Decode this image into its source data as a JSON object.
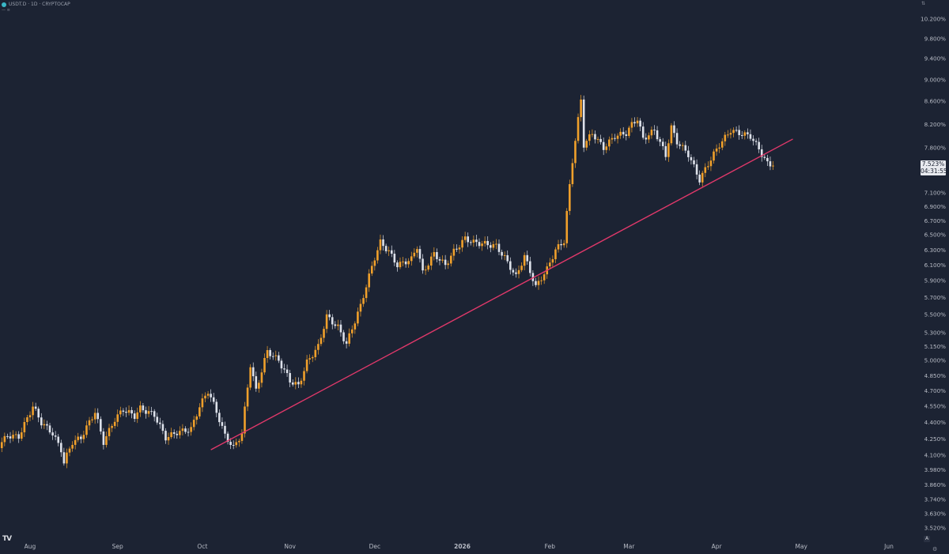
{
  "header": {
    "symbol": "USDT.D · 1D · CRYPTOCAP",
    "indicator": "— ≡",
    "settings_icon": "chart-settings-icon"
  },
  "price_axis": {
    "ticks": [
      "10.200%",
      "9.800%",
      "9.400%",
      "9.000%",
      "8.600%",
      "8.200%",
      "7.800%",
      "7.100%",
      "6.900%",
      "6.700%",
      "6.500%",
      "6.300%",
      "6.100%",
      "5.900%",
      "5.700%",
      "5.500%",
      "5.300%",
      "5.150%",
      "5.000%",
      "4.850%",
      "4.700%",
      "4.550%",
      "4.400%",
      "4.250%",
      "4.100%",
      "3.980%",
      "3.860%",
      "3.740%",
      "3.630%",
      "3.520%"
    ],
    "current_price": "7.523%",
    "countdown": "04:31:55"
  },
  "time_axis": {
    "labels": [
      "Aug",
      "Sep",
      "Oct",
      "Nov",
      "Dec",
      "2026",
      "Feb",
      "Mar",
      "Apr",
      "May",
      "Jun"
    ]
  },
  "colors": {
    "background": "#1c2333",
    "up_candle": "#f0a02b",
    "down_candle": "#dde1ea",
    "trendline": "#e0386a",
    "axis_text": "#b6bac4"
  },
  "chart_data": {
    "type": "candlestick",
    "symbol": "USDT.D",
    "interval": "1D",
    "y_unit": "%",
    "ylim": [
      3.45,
      10.3
    ],
    "x_range": [
      "2025-07-20",
      "2026-06-25"
    ],
    "trendline": {
      "from": {
        "date": "2025-10-04",
        "value": 4.15
      },
      "to": {
        "date": "2026-04-28",
        "value": 7.95
      }
    },
    "anchors": [
      [
        "2025-07-20",
        4.16
      ],
      [
        "2025-07-24",
        4.28
      ],
      [
        "2025-07-28",
        4.27
      ],
      [
        "2025-08-02",
        4.55
      ],
      [
        "2025-08-05",
        4.4
      ],
      [
        "2025-08-09",
        4.3
      ],
      [
        "2025-08-12",
        4.15
      ],
      [
        "2025-08-13",
        4.04
      ],
      [
        "2025-08-16",
        4.22
      ],
      [
        "2025-08-19",
        4.26
      ],
      [
        "2025-08-24",
        4.5
      ],
      [
        "2025-08-27",
        4.22
      ],
      [
        "2025-08-31",
        4.43
      ],
      [
        "2025-09-03",
        4.52
      ],
      [
        "2025-09-07",
        4.46
      ],
      [
        "2025-09-09",
        4.53
      ],
      [
        "2025-09-14",
        4.47
      ],
      [
        "2025-09-18",
        4.26
      ],
      [
        "2025-09-22",
        4.31
      ],
      [
        "2025-09-27",
        4.34
      ],
      [
        "2025-09-30",
        4.55
      ],
      [
        "2025-10-03",
        4.7
      ],
      [
        "2025-10-06",
        4.5
      ],
      [
        "2025-10-09",
        4.28
      ],
      [
        "2025-10-12",
        4.17
      ],
      [
        "2025-10-15",
        4.3
      ],
      [
        "2025-10-18",
        4.96
      ],
      [
        "2025-10-20",
        4.7
      ],
      [
        "2025-10-24",
        5.1
      ],
      [
        "2025-10-28",
        5.0
      ],
      [
        "2025-11-01",
        4.8
      ],
      [
        "2025-11-04",
        4.75
      ],
      [
        "2025-11-07",
        4.98
      ],
      [
        "2025-11-11",
        5.15
      ],
      [
        "2025-11-14",
        5.48
      ],
      [
        "2025-11-18",
        5.36
      ],
      [
        "2025-11-21",
        5.18
      ],
      [
        "2025-11-26",
        5.6
      ],
      [
        "2025-12-01",
        6.2
      ],
      [
        "2025-12-03",
        6.4
      ],
      [
        "2025-12-06",
        6.28
      ],
      [
        "2025-12-09",
        6.1
      ],
      [
        "2025-12-14",
        6.18
      ],
      [
        "2025-12-16",
        6.35
      ],
      [
        "2025-12-18",
        6.0
      ],
      [
        "2025-12-22",
        6.25
      ],
      [
        "2025-12-26",
        6.1
      ],
      [
        "2025-12-29",
        6.28
      ],
      [
        "2026-01-02",
        6.45
      ],
      [
        "2026-01-05",
        6.4
      ],
      [
        "2026-01-09",
        6.38
      ],
      [
        "2026-01-13",
        6.35
      ],
      [
        "2026-01-16",
        6.2
      ],
      [
        "2026-01-20",
        5.95
      ],
      [
        "2026-01-23",
        6.22
      ],
      [
        "2026-01-27",
        5.82
      ],
      [
        "2026-01-31",
        6.05
      ],
      [
        "2026-02-03",
        6.3
      ],
      [
        "2026-02-06",
        6.42
      ],
      [
        "2026-02-09",
        7.6
      ],
      [
        "2026-02-12",
        8.62
      ],
      [
        "2026-02-13",
        7.85
      ],
      [
        "2026-02-16",
        8.05
      ],
      [
        "2026-02-20",
        7.8
      ],
      [
        "2026-02-24",
        8.0
      ],
      [
        "2026-02-28",
        8.05
      ],
      [
        "2026-03-02",
        8.2
      ],
      [
        "2026-03-04",
        8.3
      ],
      [
        "2026-03-06",
        7.95
      ],
      [
        "2026-03-10",
        8.1
      ],
      [
        "2026-03-14",
        7.68
      ],
      [
        "2026-03-16",
        8.15
      ],
      [
        "2026-03-18",
        7.9
      ],
      [
        "2026-03-22",
        7.7
      ],
      [
        "2026-03-26",
        7.3
      ],
      [
        "2026-03-29",
        7.55
      ],
      [
        "2026-04-02",
        7.85
      ],
      [
        "2026-04-06",
        8.1
      ],
      [
        "2026-04-09",
        8.05
      ],
      [
        "2026-04-13",
        8.0
      ],
      [
        "2026-04-16",
        7.78
      ],
      [
        "2026-04-19",
        7.55
      ],
      [
        "2026-04-21",
        7.523
      ]
    ]
  }
}
